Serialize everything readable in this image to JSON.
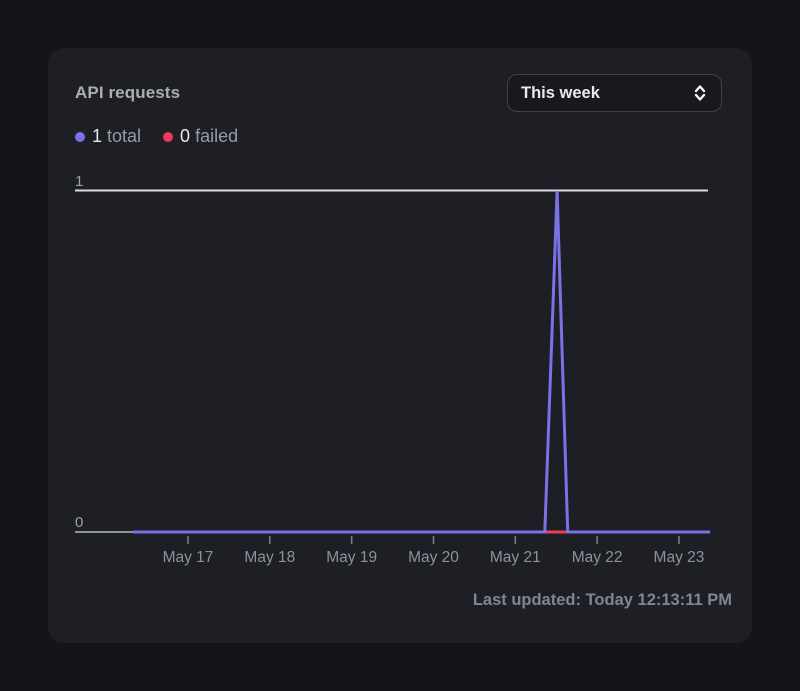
{
  "card": {
    "title": "API requests",
    "time_range": {
      "value": "This week"
    },
    "legend": {
      "total": {
        "value": "1",
        "label": "total",
        "color": "#7c72e8"
      },
      "failed": {
        "value": "0",
        "label": "failed",
        "color": "#ee3a5c"
      }
    },
    "last_updated": "Last updated: Today 12:13:11 PM"
  },
  "chart_data": {
    "type": "line",
    "title": "API requests",
    "x_tick_labels": [
      "May 17",
      "May 18",
      "May 19",
      "May 20",
      "May 21",
      "May 22",
      "May 23"
    ],
    "y_tick_labels": [
      "1",
      "0"
    ],
    "ylim": [
      0,
      1
    ],
    "x_unit": "days, 0 = May 17 tick; range shown is roughly May 16 8AM to May 23 9AM",
    "grid": "single horizontal gridline at y=1; baseline at y=0",
    "legend_position": "top-left",
    "series": [
      {
        "name": "total",
        "legend": "1 total",
        "color": "#7c72e8",
        "points": [
          {
            "x": -0.67,
            "y": 0
          },
          {
            "x": 4.36,
            "y": 0
          },
          {
            "x": 4.51,
            "y": 1
          },
          {
            "x": 4.64,
            "y": 0
          },
          {
            "x": 6.38,
            "y": 0
          }
        ],
        "note": "flat at 0 with a single narrow spike to 1 at ~May 21 12:00 PM"
      },
      {
        "name": "failed",
        "legend": "0 failed",
        "color": "#ee3a5c",
        "points": [
          {
            "x": -0.67,
            "y": 0
          },
          {
            "x": 6.38,
            "y": 0
          }
        ],
        "note": "flat at 0 for the whole range; visible only under the total spike"
      }
    ]
  }
}
